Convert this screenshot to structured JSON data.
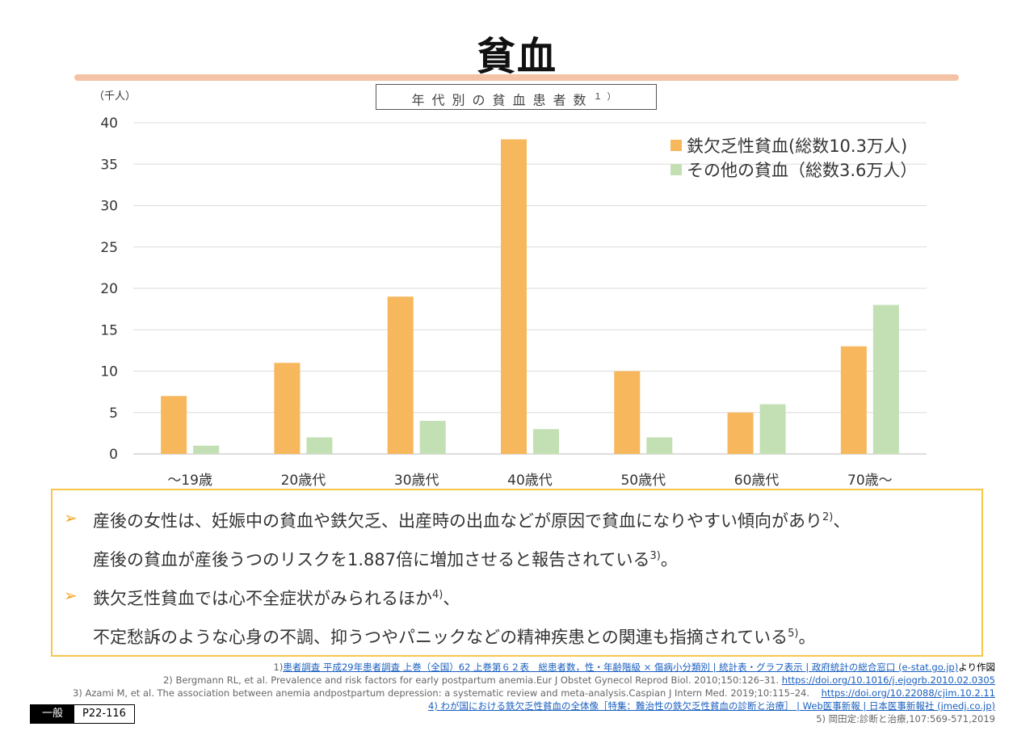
{
  "title": "貧血",
  "chart_data": {
    "type": "bar",
    "title": "年代別の貧血患者数",
    "title_ref": "１）",
    "unit": "（千人）",
    "categories": [
      "～19歳",
      "20歳代",
      "30歳代",
      "40歳代",
      "50歳代",
      "60歳代",
      "70歳～"
    ],
    "series": [
      {
        "name": "鉄欠乏性貧血(総数10.3万人)",
        "color": "#f7b75c",
        "values": [
          7,
          11,
          19,
          38,
          10,
          5,
          13
        ]
      },
      {
        "name": "その他の貧血（総数3.6万人）",
        "color": "#c3e0b4",
        "values": [
          1,
          2,
          4,
          3,
          2,
          6,
          18
        ]
      }
    ],
    "ylim": [
      0,
      40
    ],
    "yticks": [
      0,
      5,
      10,
      15,
      20,
      25,
      30,
      35,
      40
    ],
    "grid": true,
    "legend_position": "top-right"
  },
  "notes": {
    "line1": "産後の女性は、妊娠中の貧血や鉄欠乏、出産時の出血などが原因で貧血になりやすい傾向があり",
    "line1_ref": "2)",
    "line1_tail": "、",
    "line2": "産後の貧血が産後うつのリスクを1.887倍に増加させると報告されている",
    "line2_ref": "3)",
    "line2_tail": "。",
    "line3": "鉄欠乏性貧血では心不全症状がみられるほか",
    "line3_ref": "4)",
    "line3_tail": "、",
    "line4": "不定愁訴のような心身の不調、抑うつやパニックなどの精神疾患との関連も指摘されている",
    "line4_ref": "5)",
    "line4_tail": "。",
    "bullet": "➢"
  },
  "references": {
    "r1_num": "1)",
    "r1_link": "患者調査 平成29年患者調査 上巻（全国）62 上巻第６２表　総患者数，性・年齢階級 × 傷病小分類別 | 統計表・グラフ表示 | 政府統計の総合窓口 (e-stat.go.jp)",
    "r1_tail": "より作図",
    "r2_text": "2) Bergmann RL, et al. Prevalence and risk factors for early postpartum anemia.Eur J Obstet Gynecol Reprod Biol. 2010;150:126–31.",
    "r2_link": "https://doi.org/10.1016/j.ejogrb.2010.02.0305",
    "r3_text": "3) Azami M, et al. The association between anemia andpostpartum depression: a systematic review and meta-analysis.Caspian J Intern Med. 2019;10:115–24.",
    "r3_link": "https://doi.org/10.22088/cjim.10.2.11",
    "r4_link": "4) わが国における鉄欠乏性貧血の全体像［特集：難治性の鉄欠乏性貧血の診断と治療］ | Web医事新報 | 日本医事新報社 (jmedj.co.jp)",
    "r5_text": "5) 岡田定:診断と治療,107:569-571,2019"
  },
  "footer": {
    "category": "一般",
    "code": "P22-116"
  }
}
